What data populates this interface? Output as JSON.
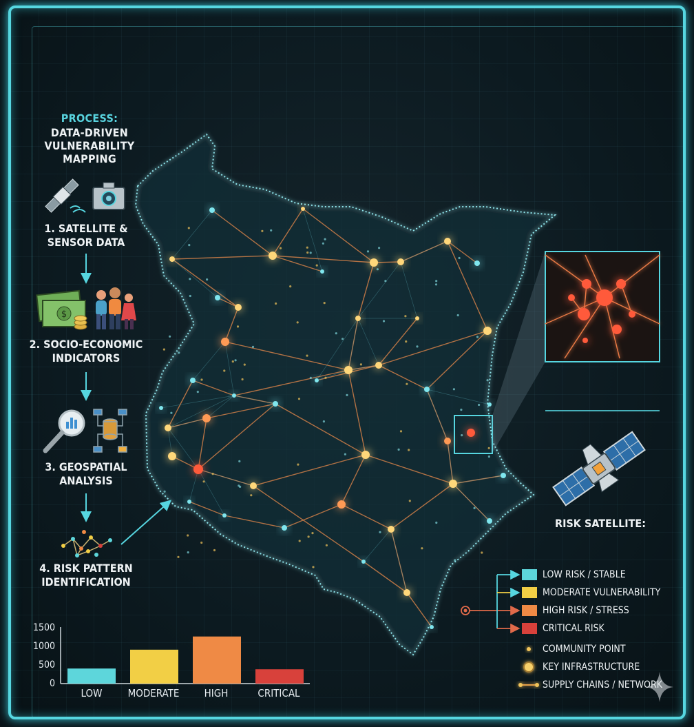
{
  "process": {
    "title": "PROCESS:",
    "subtitle_lines": [
      "DATA-DRIVEN",
      "VULNERABILITY",
      "MAPPING"
    ],
    "steps": [
      {
        "lines": [
          "1. SATELLITE &",
          "SENSOR DATA"
        ],
        "icons": [
          "satellite-icon",
          "camera-icon"
        ]
      },
      {
        "lines": [
          "2. SOCIO-ECONOMIC",
          "INDICATORS"
        ],
        "icons": [
          "money-icon",
          "people-icon"
        ]
      },
      {
        "lines": [
          "3. GEOSPATIAL",
          "ANALYSIS"
        ],
        "icons": [
          "magnifier-chart-icon",
          "database-flow-icon"
        ]
      },
      {
        "lines": [
          "4. RISK PATTERN",
          "IDENTIFICATION"
        ],
        "icons": [
          "network-pattern-icon"
        ]
      }
    ]
  },
  "risk_satellite": {
    "title": "RISK SATELLITE:"
  },
  "legend": {
    "items": [
      {
        "label": "LOW RISK / STABLE",
        "color": "#5dd6db"
      },
      {
        "label": "MODERATE VULNERABILITY",
        "color": "#f2cf45"
      },
      {
        "label": "HIGH RISK / STRESS",
        "color": "#ef8a45"
      },
      {
        "label": "CRITICAL RISK",
        "color": "#d8413b"
      },
      {
        "label": "COMMUNITY POINT",
        "color": "#f2c45a"
      },
      {
        "label": "KEY INFRASTRUCTURE",
        "color": "#f7d06a"
      },
      {
        "label": "SUPPLY CHAINS / NETWORK",
        "color": "#e8a24a"
      }
    ]
  },
  "chart_data": {
    "type": "bar",
    "categories": [
      "LOW",
      "MODERATE",
      "HIGH",
      "CRITICAL"
    ],
    "values": [
      400,
      900,
      1250,
      380
    ],
    "colors": [
      "#5dd6db",
      "#f2cf45",
      "#ef8a45",
      "#d8413b"
    ],
    "yticks": [
      0,
      500,
      1000,
      1500
    ],
    "ylim": [
      0,
      1500
    ]
  },
  "colors": {
    "accent": "#56d6e0",
    "low": "#5dd6db",
    "moderate": "#f2cf45",
    "high": "#ef8a45",
    "critical": "#d8413b"
  }
}
